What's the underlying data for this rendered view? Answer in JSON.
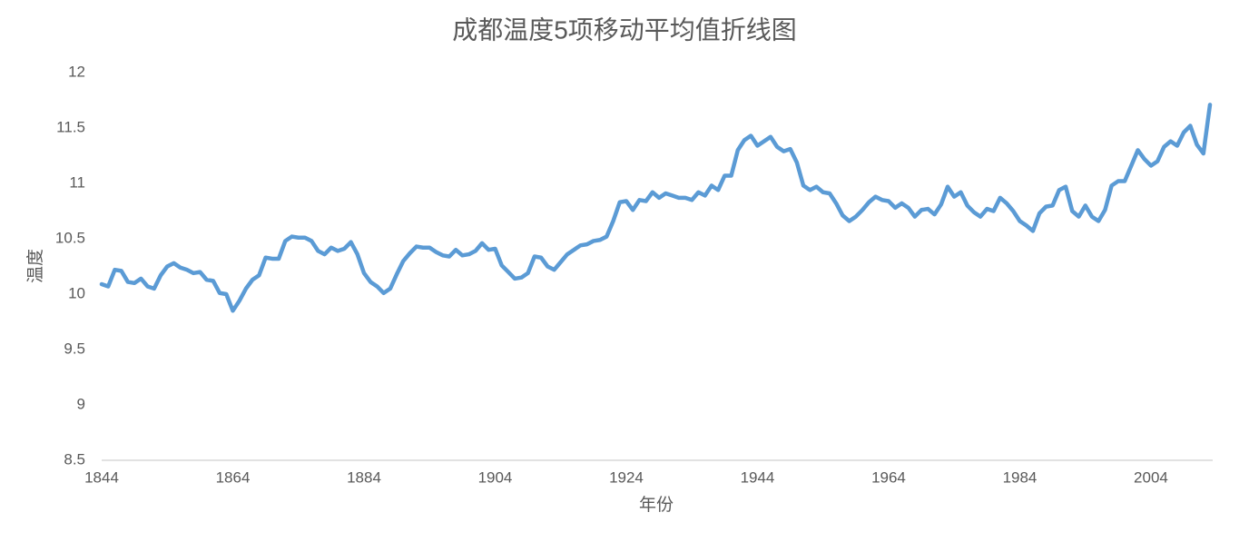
{
  "chart_data": {
    "type": "line",
    "title": "成都温度5项移动平均值折线图",
    "xlabel": "年份",
    "ylabel": "温度",
    "x": [
      1844,
      1845,
      1846,
      1847,
      1848,
      1849,
      1850,
      1851,
      1852,
      1853,
      1854,
      1855,
      1856,
      1857,
      1858,
      1859,
      1860,
      1861,
      1862,
      1863,
      1864,
      1865,
      1866,
      1867,
      1868,
      1869,
      1870,
      1871,
      1872,
      1873,
      1874,
      1875,
      1876,
      1877,
      1878,
      1879,
      1880,
      1881,
      1882,
      1883,
      1884,
      1885,
      1886,
      1887,
      1888,
      1889,
      1890,
      1891,
      1892,
      1893,
      1894,
      1895,
      1896,
      1897,
      1898,
      1899,
      1900,
      1901,
      1902,
      1903,
      1904,
      1905,
      1906,
      1907,
      1908,
      1909,
      1910,
      1911,
      1912,
      1913,
      1914,
      1915,
      1916,
      1917,
      1918,
      1919,
      1920,
      1921,
      1922,
      1923,
      1924,
      1925,
      1926,
      1927,
      1928,
      1929,
      1930,
      1931,
      1932,
      1933,
      1934,
      1935,
      1936,
      1937,
      1938,
      1939,
      1940,
      1941,
      1942,
      1943,
      1944,
      1945,
      1946,
      1947,
      1948,
      1949,
      1950,
      1951,
      1952,
      1953,
      1954,
      1955,
      1956,
      1957,
      1958,
      1959,
      1960,
      1961,
      1962,
      1963,
      1964,
      1965,
      1966,
      1967,
      1968,
      1969,
      1970,
      1971,
      1972,
      1973,
      1974,
      1975,
      1976,
      1977,
      1978,
      1979,
      1980,
      1981,
      1982,
      1983,
      1984,
      1985,
      1986,
      1987,
      1988,
      1989,
      1990,
      1991,
      1992,
      1993,
      1994,
      1995,
      1996,
      1997,
      1998,
      1999,
      2000,
      2001,
      2002,
      2003,
      2004,
      2005,
      2006,
      2007,
      2008,
      2009,
      2010,
      2011,
      2012,
      2013
    ],
    "series": [
      {
        "name": "温度",
        "color": "#5b9bd5",
        "values": [
          10.09,
          10.07,
          10.22,
          10.21,
          10.11,
          10.1,
          10.14,
          10.07,
          10.05,
          10.17,
          10.25,
          10.28,
          10.24,
          10.22,
          10.19,
          10.2,
          10.13,
          10.12,
          10.01,
          10.0,
          9.85,
          9.94,
          10.05,
          10.13,
          10.17,
          10.33,
          10.32,
          10.32,
          10.48,
          10.52,
          10.51,
          10.51,
          10.48,
          10.39,
          10.36,
          10.42,
          10.39,
          10.41,
          10.47,
          10.36,
          10.19,
          10.11,
          10.07,
          10.01,
          10.05,
          10.18,
          10.3,
          10.37,
          10.43,
          10.42,
          10.42,
          10.38,
          10.35,
          10.34,
          10.4,
          10.35,
          10.36,
          10.39,
          10.46,
          10.4,
          10.41,
          10.26,
          10.2,
          10.14,
          10.15,
          10.19,
          10.34,
          10.33,
          10.25,
          10.22,
          10.29,
          10.36,
          10.4,
          10.44,
          10.45,
          10.48,
          10.49,
          10.52,
          10.66,
          10.83,
          10.84,
          10.76,
          10.85,
          10.84,
          10.92,
          10.87,
          10.91,
          10.89,
          10.87,
          10.87,
          10.85,
          10.92,
          10.89,
          10.98,
          10.94,
          11.07,
          11.07,
          11.3,
          11.39,
          11.43,
          11.34,
          11.38,
          11.42,
          11.33,
          11.29,
          11.31,
          11.19,
          10.98,
          10.94,
          10.97,
          10.92,
          10.91,
          10.82,
          10.71,
          10.66,
          10.7,
          10.76,
          10.83,
          10.88,
          10.85,
          10.84,
          10.78,
          10.82,
          10.78,
          10.7,
          10.76,
          10.77,
          10.72,
          10.81,
          10.97,
          10.88,
          10.92,
          10.8,
          10.74,
          10.7,
          10.77,
          10.75,
          10.87,
          10.82,
          10.75,
          10.66,
          10.62,
          10.57,
          10.73,
          10.79,
          10.8,
          10.94,
          10.97,
          10.75,
          10.7,
          10.8,
          10.7,
          10.66,
          10.76,
          10.98,
          11.02,
          11.02,
          11.16,
          11.3,
          11.22,
          11.16,
          11.2,
          11.33,
          11.38,
          11.34,
          11.46,
          11.52,
          11.35,
          11.27,
          11.71
        ]
      }
    ],
    "xlim": [
      1844,
      2013
    ],
    "xticks": [
      1844,
      1864,
      1884,
      1904,
      1924,
      1944,
      1964,
      1984,
      2004
    ],
    "ylim": [
      8.5,
      12
    ],
    "yticks": [
      8.5,
      9,
      9.5,
      10,
      10.5,
      11,
      11.5,
      12
    ],
    "grid": false
  }
}
